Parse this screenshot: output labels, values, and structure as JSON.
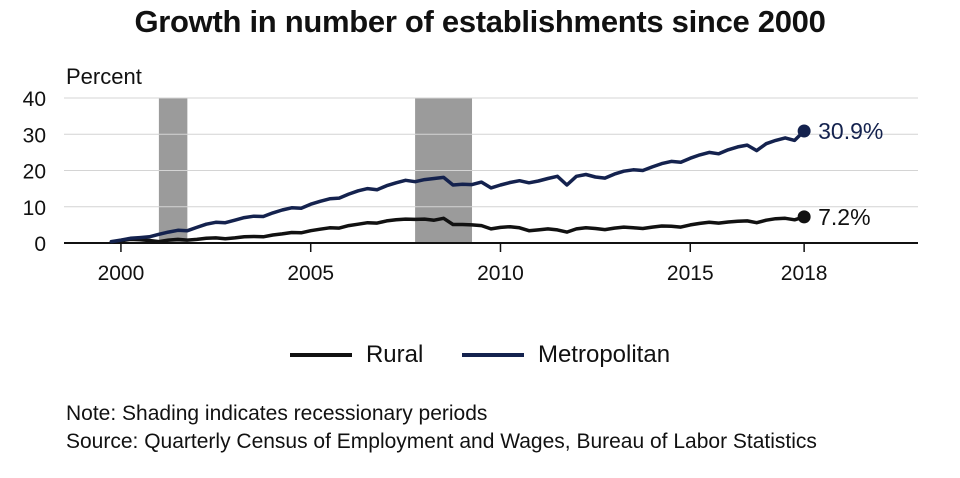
{
  "title": "Growth in number of establishments since 2000",
  "chart_data": {
    "type": "line",
    "title": "Growth in number of establishments since 2000",
    "ylabel": "Percent",
    "xlabel": "",
    "xlim": [
      1998.5,
      2021
    ],
    "ylim": [
      0,
      40
    ],
    "x_ticks": [
      2000,
      2005,
      2010,
      2015,
      2018
    ],
    "y_ticks": [
      0,
      10,
      20,
      30,
      40
    ],
    "grid": true,
    "legend_position": "bottom",
    "recessions": [
      [
        2001.0,
        2001.75
      ],
      [
        2007.75,
        2009.25
      ]
    ],
    "series": [
      {
        "name": "Rural",
        "color": "#111111",
        "end_label": "7.2%",
        "points": [
          [
            1999.75,
            0.3
          ],
          [
            2000.0,
            0.6
          ],
          [
            2000.25,
            1.0
          ],
          [
            2000.5,
            0.9
          ],
          [
            2000.75,
            0.7
          ],
          [
            2001.0,
            0.4
          ],
          [
            2001.25,
            0.8
          ],
          [
            2001.5,
            1.0
          ],
          [
            2001.75,
            0.8
          ],
          [
            2002.0,
            1.0
          ],
          [
            2002.25,
            1.3
          ],
          [
            2002.5,
            1.4
          ],
          [
            2002.75,
            1.2
          ],
          [
            2003.0,
            1.4
          ],
          [
            2003.25,
            1.7
          ],
          [
            2003.5,
            1.8
          ],
          [
            2003.75,
            1.7
          ],
          [
            2004.0,
            2.2
          ],
          [
            2004.25,
            2.5
          ],
          [
            2004.5,
            2.9
          ],
          [
            2004.75,
            2.8
          ],
          [
            2005.0,
            3.4
          ],
          [
            2005.25,
            3.8
          ],
          [
            2005.5,
            4.2
          ],
          [
            2005.75,
            4.1
          ],
          [
            2006.0,
            4.8
          ],
          [
            2006.25,
            5.2
          ],
          [
            2006.5,
            5.6
          ],
          [
            2006.75,
            5.5
          ],
          [
            2007.0,
            6.1
          ],
          [
            2007.25,
            6.4
          ],
          [
            2007.5,
            6.6
          ],
          [
            2007.75,
            6.5
          ],
          [
            2008.0,
            6.6
          ],
          [
            2008.25,
            6.3
          ],
          [
            2008.5,
            6.8
          ],
          [
            2008.75,
            5.1
          ],
          [
            2009.0,
            5.1
          ],
          [
            2009.25,
            5.0
          ],
          [
            2009.5,
            4.8
          ],
          [
            2009.75,
            3.9
          ],
          [
            2010.0,
            4.3
          ],
          [
            2010.25,
            4.5
          ],
          [
            2010.5,
            4.2
          ],
          [
            2010.75,
            3.4
          ],
          [
            2011.0,
            3.6
          ],
          [
            2011.25,
            3.9
          ],
          [
            2011.5,
            3.6
          ],
          [
            2011.75,
            3.0
          ],
          [
            2012.0,
            3.9
          ],
          [
            2012.25,
            4.2
          ],
          [
            2012.5,
            4.0
          ],
          [
            2012.75,
            3.7
          ],
          [
            2013.0,
            4.1
          ],
          [
            2013.25,
            4.4
          ],
          [
            2013.5,
            4.2
          ],
          [
            2013.75,
            4.0
          ],
          [
            2014.0,
            4.4
          ],
          [
            2014.25,
            4.7
          ],
          [
            2014.5,
            4.6
          ],
          [
            2014.75,
            4.4
          ],
          [
            2015.0,
            5.0
          ],
          [
            2015.25,
            5.4
          ],
          [
            2015.5,
            5.7
          ],
          [
            2015.75,
            5.5
          ],
          [
            2016.0,
            5.8
          ],
          [
            2016.25,
            6.0
          ],
          [
            2016.5,
            6.1
          ],
          [
            2016.75,
            5.6
          ],
          [
            2017.0,
            6.3
          ],
          [
            2017.25,
            6.7
          ],
          [
            2017.5,
            6.8
          ],
          [
            2017.75,
            6.4
          ],
          [
            2018.0,
            7.2
          ]
        ]
      },
      {
        "name": "Metropolitan",
        "color": "#14224e",
        "end_label": "30.9%",
        "points": [
          [
            1999.75,
            0.4
          ],
          [
            2000.0,
            0.8
          ],
          [
            2000.25,
            1.3
          ],
          [
            2000.5,
            1.5
          ],
          [
            2000.75,
            1.7
          ],
          [
            2001.0,
            2.4
          ],
          [
            2001.25,
            3.0
          ],
          [
            2001.5,
            3.5
          ],
          [
            2001.75,
            3.4
          ],
          [
            2002.0,
            4.3
          ],
          [
            2002.25,
            5.2
          ],
          [
            2002.5,
            5.7
          ],
          [
            2002.75,
            5.6
          ],
          [
            2003.0,
            6.3
          ],
          [
            2003.25,
            7.0
          ],
          [
            2003.5,
            7.4
          ],
          [
            2003.75,
            7.3
          ],
          [
            2004.0,
            8.3
          ],
          [
            2004.25,
            9.1
          ],
          [
            2004.5,
            9.7
          ],
          [
            2004.75,
            9.6
          ],
          [
            2005.0,
            10.7
          ],
          [
            2005.25,
            11.5
          ],
          [
            2005.5,
            12.2
          ],
          [
            2005.75,
            12.4
          ],
          [
            2006.0,
            13.5
          ],
          [
            2006.25,
            14.4
          ],
          [
            2006.5,
            15.0
          ],
          [
            2006.75,
            14.7
          ],
          [
            2007.0,
            15.8
          ],
          [
            2007.25,
            16.6
          ],
          [
            2007.5,
            17.3
          ],
          [
            2007.75,
            16.9
          ],
          [
            2008.0,
            17.5
          ],
          [
            2008.25,
            17.8
          ],
          [
            2008.5,
            18.1
          ],
          [
            2008.75,
            16.0
          ],
          [
            2009.0,
            16.2
          ],
          [
            2009.25,
            16.1
          ],
          [
            2009.5,
            16.8
          ],
          [
            2009.75,
            15.2
          ],
          [
            2010.0,
            16.0
          ],
          [
            2010.25,
            16.7
          ],
          [
            2010.5,
            17.2
          ],
          [
            2010.75,
            16.6
          ],
          [
            2011.0,
            17.1
          ],
          [
            2011.25,
            17.8
          ],
          [
            2011.5,
            18.4
          ],
          [
            2011.75,
            16.0
          ],
          [
            2012.0,
            18.4
          ],
          [
            2012.25,
            18.9
          ],
          [
            2012.5,
            18.2
          ],
          [
            2012.75,
            17.9
          ],
          [
            2013.0,
            19.0
          ],
          [
            2013.25,
            19.8
          ],
          [
            2013.5,
            20.2
          ],
          [
            2013.75,
            20.0
          ],
          [
            2014.0,
            21.0
          ],
          [
            2014.25,
            21.9
          ],
          [
            2014.5,
            22.5
          ],
          [
            2014.75,
            22.3
          ],
          [
            2015.0,
            23.4
          ],
          [
            2015.25,
            24.3
          ],
          [
            2015.5,
            25.0
          ],
          [
            2015.75,
            24.6
          ],
          [
            2016.0,
            25.7
          ],
          [
            2016.25,
            26.5
          ],
          [
            2016.5,
            27.0
          ],
          [
            2016.75,
            25.5
          ],
          [
            2017.0,
            27.4
          ],
          [
            2017.25,
            28.3
          ],
          [
            2017.5,
            29.0
          ],
          [
            2017.75,
            28.3
          ],
          [
            2018.0,
            30.9
          ]
        ]
      }
    ]
  },
  "legend": [
    {
      "label": "Rural",
      "color": "#111111"
    },
    {
      "label": "Metropolitan",
      "color": "#14224e"
    }
  ],
  "note": "Note: Shading indicates recessionary periods",
  "source": "Source: Quarterly Census of Employment and Wages, Bureau of Labor Statistics"
}
